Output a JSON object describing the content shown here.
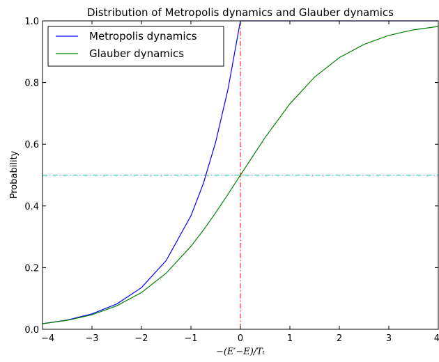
{
  "chart_data": {
    "type": "line",
    "title": "Distribution of Metropolis dynamics and Glauber dynamics",
    "xlabel": "−(E′−E)/Tₜ",
    "ylabel": "Probability",
    "xlim": [
      -4,
      4
    ],
    "ylim": [
      0,
      1
    ],
    "x_ticks": [
      -4,
      -3,
      -2,
      -1,
      0,
      1,
      2,
      3,
      4
    ],
    "x_tick_labels": [
      "−4",
      "−3",
      "−2",
      "−1",
      "0",
      "1",
      "2",
      "3",
      "4"
    ],
    "y_ticks": [
      0,
      0.2,
      0.4,
      0.6,
      0.8,
      1.0
    ],
    "y_tick_labels": [
      "0.0",
      "0.2",
      "0.4",
      "0.6",
      "0.8",
      "1.0"
    ],
    "grid": false,
    "legend_position": "top-left",
    "x": [
      -4,
      -3.5,
      -3,
      -2.5,
      -2,
      -1.5,
      -1,
      -0.75,
      -0.5,
      -0.25,
      0,
      0.5,
      1,
      1.5,
      2,
      2.5,
      3,
      3.5,
      4
    ],
    "series": [
      {
        "name": "Metropolis dynamics",
        "color": "#0000ff",
        "values": [
          0.018,
          0.03,
          0.05,
          0.082,
          0.135,
          0.223,
          0.368,
          0.472,
          0.607,
          0.779,
          1.0,
          1.0,
          1.0,
          1.0,
          1.0,
          1.0,
          1.0,
          1.0,
          1.0
        ]
      },
      {
        "name": "Glauber dynamics",
        "color": "#008000",
        "values": [
          0.018,
          0.029,
          0.047,
          0.076,
          0.119,
          0.182,
          0.269,
          0.321,
          0.378,
          0.438,
          0.5,
          0.622,
          0.731,
          0.818,
          0.881,
          0.924,
          0.953,
          0.971,
          0.982
        ]
      }
    ],
    "reference_lines": [
      {
        "orientation": "vertical",
        "value": 0,
        "color": "#ff0000",
        "style": "dash-dot"
      },
      {
        "orientation": "horizontal",
        "value": 0.5,
        "color": "#00bfbf",
        "style": "dash-dot"
      }
    ]
  }
}
